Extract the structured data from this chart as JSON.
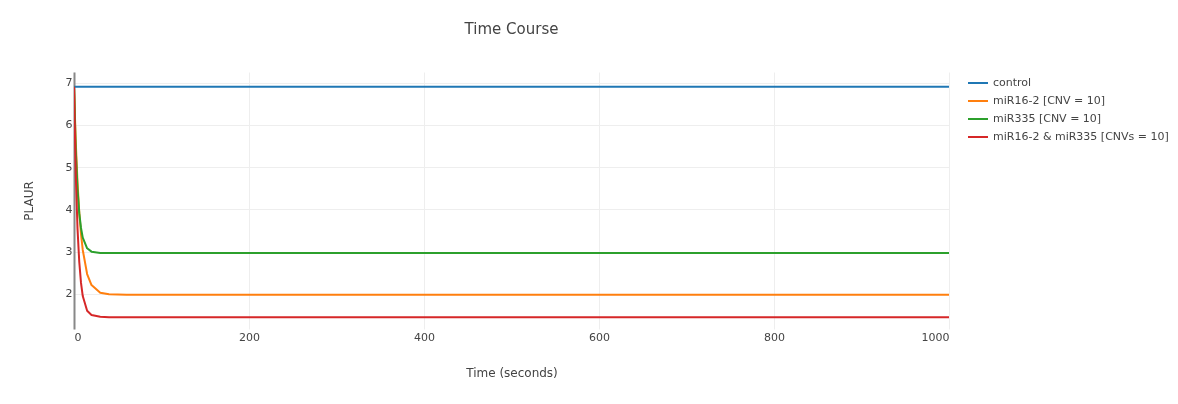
{
  "chart_data": {
    "type": "line",
    "title": "Time Course",
    "xlabel": "Time (seconds)",
    "ylabel": "PLAUR",
    "x": [
      0,
      2,
      4,
      6,
      8,
      10,
      15,
      20,
      30,
      40,
      60,
      100,
      1000
    ],
    "xlim": [
      0,
      1000
    ],
    "xticks": [
      0,
      200,
      400,
      600,
      800,
      1000
    ],
    "ylim": [
      1.17,
      7.25
    ],
    "yticks": [
      2,
      3,
      4,
      5,
      6,
      7
    ],
    "grid": true,
    "legend": "top right",
    "line_style": "solid",
    "marker": "none",
    "series": [
      {
        "name": "control",
        "color": "#1f77b4",
        "values": [
          6.9,
          6.9,
          6.9,
          6.9,
          6.9,
          6.9,
          6.9,
          6.9,
          6.9,
          6.9,
          6.9,
          6.9,
          6.9
        ]
      },
      {
        "name": "miR16-2 [CNV = 10]",
        "color": "#ff7f0e",
        "values": [
          6.9,
          5.6,
          4.64,
          3.93,
          3.42,
          3.04,
          2.47,
          2.21,
          2.03,
          1.99,
          1.98,
          1.98,
          1.98
        ]
      },
      {
        "name": "miR335 [CNV = 10]",
        "color": "#2ca02c",
        "values": [
          6.9,
          5.41,
          4.49,
          3.91,
          3.56,
          3.33,
          3.08,
          3.0,
          2.97,
          2.97,
          2.97,
          2.97,
          2.97
        ]
      },
      {
        "name": "miR16-2 & miR335 [CNVs = 10]",
        "color": "#d62728",
        "values": [
          6.9,
          4.83,
          3.55,
          2.76,
          2.26,
          1.95,
          1.6,
          1.5,
          1.46,
          1.45,
          1.45,
          1.45,
          1.45
        ]
      }
    ]
  }
}
